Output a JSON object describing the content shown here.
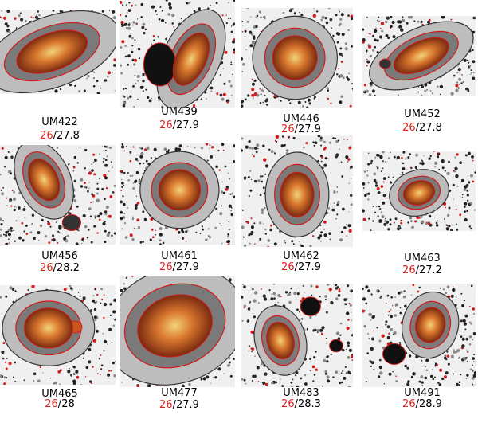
{
  "panels": [
    {
      "name": "UM422",
      "limit_inner": "26",
      "limit_outer": "27.8"
    },
    {
      "name": "UM439",
      "limit_inner": "26",
      "limit_outer": "27.9"
    },
    {
      "name": "UM446",
      "limit_inner": "26",
      "limit_outer": "27.9"
    },
    {
      "name": "UM452",
      "limit_inner": "26",
      "limit_outer": "27.8"
    },
    {
      "name": "UM456",
      "limit_inner": "26",
      "limit_outer": "28.2"
    },
    {
      "name": "UM461",
      "limit_inner": "26",
      "limit_outer": "27.9"
    },
    {
      "name": "UM462",
      "limit_inner": "26",
      "limit_outer": "27.9"
    },
    {
      "name": "UM463",
      "limit_inner": "26",
      "limit_outer": "27.2"
    },
    {
      "name": "UM465",
      "limit_inner": "26",
      "limit_outer": "28"
    },
    {
      "name": "UM477",
      "limit_inner": "26",
      "limit_outer": "27.9"
    },
    {
      "name": "UM483",
      "limit_inner": "26",
      "limit_outer": "28.3"
    },
    {
      "name": "UM491",
      "limit_inner": "26",
      "limit_outer": "28.9"
    }
  ],
  "separator": "/",
  "colors": {
    "inner_limit": "#e0221c",
    "contour": "#d11a1a",
    "galaxy": "#c8561e"
  }
}
